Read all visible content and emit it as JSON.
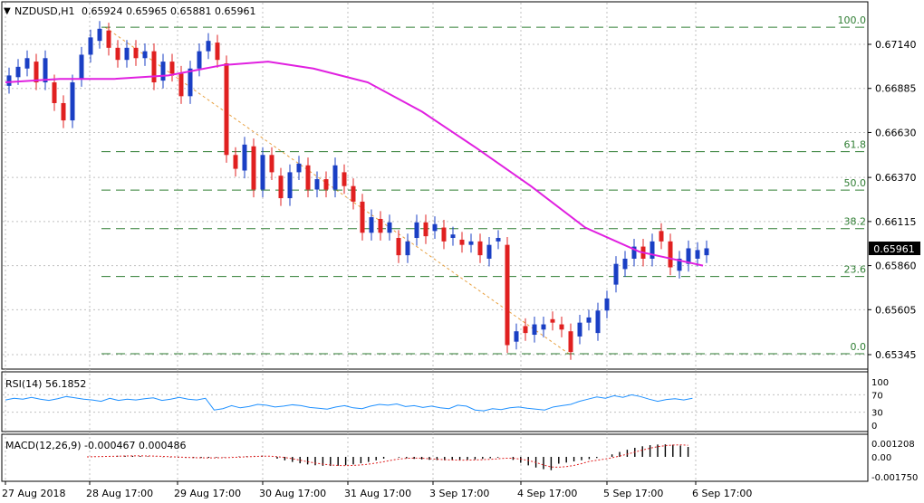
{
  "header": {
    "marker": "▼",
    "symbol": "NZDUSD,H1",
    "ohlc": "0.65924 0.65965 0.65881 0.65961"
  },
  "colors": {
    "background": "#ffffff",
    "frame": "#000000",
    "grid": "#c0c0c0",
    "bull_candle": "#1a3fc4",
    "bear_candle": "#e02020",
    "moving_average": "#e020e0",
    "fib_lines": "#2e7d32",
    "fib_trend": "#e8a040",
    "rsi_line": "#1e90ff",
    "macd_hist": "#000000",
    "macd_signal": "#e02020"
  },
  "price_axis": {
    "ticks": [
      "0.67140",
      "0.66885",
      "0.66630",
      "0.66370",
      "0.66115",
      "0.65860",
      "0.65605",
      "0.65345"
    ],
    "current_price": "0.65961"
  },
  "time_axis": {
    "labels": [
      "27 Aug 2018",
      "28 Aug 17:00",
      "29 Aug 17:00",
      "30 Aug 17:00",
      "31 Aug 17:00",
      "3 Sep 17:00",
      "4 Sep 17:00",
      "5 Sep 17:00",
      "6 Sep 17:00"
    ]
  },
  "fibonacci": {
    "levels": [
      {
        "label": "100.0",
        "price": 0.67239
      },
      {
        "label": "61.8",
        "price": 0.66519
      },
      {
        "label": "50.0",
        "price": 0.66297
      },
      {
        "label": "38.2",
        "price": 0.66074
      },
      {
        "label": "23.6",
        "price": 0.65797
      },
      {
        "label": "0.0",
        "price": 0.6535
      }
    ]
  },
  "rsi_panel": {
    "label": "RSI(14) 56.1852",
    "ticks": [
      "100",
      "70",
      "30",
      "0"
    ]
  },
  "macd_panel": {
    "label": "MACD(12,26,9) -0.000467 0.000486",
    "ticks": [
      "0.001208",
      "0.00",
      "-0.001750"
    ]
  },
  "chart_data": {
    "type": "candlestick",
    "symbol": "NZDUSD",
    "timeframe": "H1",
    "ylim": [
      0.6522,
      0.6733
    ],
    "last_close": 0.65961,
    "candles_approx": [
      {
        "x": 0,
        "o": 0.669,
        "c": 0.6696
      },
      {
        "x": 10,
        "o": 0.6695,
        "c": 0.6701
      },
      {
        "x": 20,
        "o": 0.67,
        "c": 0.6706
      },
      {
        "x": 30,
        "o": 0.6704,
        "c": 0.6692
      },
      {
        "x": 40,
        "o": 0.6692,
        "c": 0.6706
      },
      {
        "x": 50,
        "o": 0.6692,
        "c": 0.668
      },
      {
        "x": 60,
        "o": 0.668,
        "c": 0.667
      },
      {
        "x": 70,
        "o": 0.667,
        "c": 0.6692
      },
      {
        "x": 80,
        "o": 0.6694,
        "c": 0.6708
      },
      {
        "x": 90,
        "o": 0.6708,
        "c": 0.6718
      },
      {
        "x": 100,
        "o": 0.6716,
        "c": 0.6723
      },
      {
        "x": 110,
        "o": 0.6722,
        "c": 0.6712
      },
      {
        "x": 120,
        "o": 0.6712,
        "c": 0.6705
      },
      {
        "x": 130,
        "o": 0.6705,
        "c": 0.6712
      },
      {
        "x": 140,
        "o": 0.6712,
        "c": 0.6706
      },
      {
        "x": 150,
        "o": 0.6706,
        "c": 0.671
      },
      {
        "x": 160,
        "o": 0.671,
        "c": 0.6692
      },
      {
        "x": 170,
        "o": 0.6693,
        "c": 0.6704
      },
      {
        "x": 180,
        "o": 0.6704,
        "c": 0.6697
      },
      {
        "x": 190,
        "o": 0.6697,
        "c": 0.6684
      },
      {
        "x": 200,
        "o": 0.6684,
        "c": 0.67
      },
      {
        "x": 210,
        "o": 0.67,
        "c": 0.671
      },
      {
        "x": 220,
        "o": 0.671,
        "c": 0.6716
      },
      {
        "x": 230,
        "o": 0.6715,
        "c": 0.6705
      },
      {
        "x": 240,
        "o": 0.6703,
        "c": 0.665
      },
      {
        "x": 250,
        "o": 0.665,
        "c": 0.6642
      },
      {
        "x": 260,
        "o": 0.6641,
        "c": 0.6656
      },
      {
        "x": 270,
        "o": 0.6655,
        "c": 0.663
      },
      {
        "x": 280,
        "o": 0.663,
        "c": 0.665
      },
      {
        "x": 290,
        "o": 0.665,
        "c": 0.664
      },
      {
        "x": 300,
        "o": 0.6638,
        "c": 0.6625
      },
      {
        "x": 310,
        "o": 0.6625,
        "c": 0.664
      },
      {
        "x": 320,
        "o": 0.664,
        "c": 0.6645
      },
      {
        "x": 330,
        "o": 0.6644,
        "c": 0.663
      },
      {
        "x": 340,
        "o": 0.663,
        "c": 0.6636
      },
      {
        "x": 350,
        "o": 0.6636,
        "c": 0.663
      },
      {
        "x": 360,
        "o": 0.663,
        "c": 0.6644
      },
      {
        "x": 370,
        "o": 0.664,
        "c": 0.6632
      },
      {
        "x": 380,
        "o": 0.6632,
        "c": 0.6623
      },
      {
        "x": 390,
        "o": 0.6623,
        "c": 0.6605
      },
      {
        "x": 400,
        "o": 0.6605,
        "c": 0.6614
      },
      {
        "x": 410,
        "o": 0.6613,
        "c": 0.6605
      },
      {
        "x": 420,
        "o": 0.6605,
        "c": 0.6611
      },
      {
        "x": 430,
        "o": 0.6602,
        "c": 0.6592
      },
      {
        "x": 440,
        "o": 0.6592,
        "c": 0.66
      },
      {
        "x": 450,
        "o": 0.6602,
        "c": 0.6611
      },
      {
        "x": 460,
        "o": 0.6611,
        "c": 0.6603
      },
      {
        "x": 470,
        "o": 0.6606,
        "c": 0.661
      },
      {
        "x": 480,
        "o": 0.6608,
        "c": 0.66
      },
      {
        "x": 490,
        "o": 0.6602,
        "c": 0.6604
      },
      {
        "x": 500,
        "o": 0.6601,
        "c": 0.6598
      },
      {
        "x": 510,
        "o": 0.6598,
        "c": 0.66
      },
      {
        "x": 520,
        "o": 0.66,
        "c": 0.6592
      },
      {
        "x": 530,
        "o": 0.659,
        "c": 0.6598
      },
      {
        "x": 540,
        "o": 0.66,
        "c": 0.6602
      },
      {
        "x": 550,
        "o": 0.6598,
        "c": 0.654
      },
      {
        "x": 560,
        "o": 0.6542,
        "c": 0.6548
      },
      {
        "x": 570,
        "o": 0.6551,
        "c": 0.6547
      },
      {
        "x": 580,
        "o": 0.6546,
        "c": 0.6552
      },
      {
        "x": 590,
        "o": 0.6549,
        "c": 0.6552
      },
      {
        "x": 600,
        "o": 0.6555,
        "c": 0.6553
      },
      {
        "x": 610,
        "o": 0.6552,
        "c": 0.6549
      },
      {
        "x": 620,
        "o": 0.6548,
        "c": 0.6536
      },
      {
        "x": 630,
        "o": 0.6545,
        "c": 0.6553
      },
      {
        "x": 640,
        "o": 0.6553,
        "c": 0.6556
      },
      {
        "x": 650,
        "o": 0.6547,
        "c": 0.656
      },
      {
        "x": 660,
        "o": 0.656,
        "c": 0.6567
      },
      {
        "x": 670,
        "o": 0.6575,
        "c": 0.6587
      },
      {
        "x": 680,
        "o": 0.6584,
        "c": 0.659
      },
      {
        "x": 690,
        "o": 0.659,
        "c": 0.6597
      },
      {
        "x": 700,
        "o": 0.6597,
        "c": 0.659
      },
      {
        "x": 710,
        "o": 0.659,
        "c": 0.66
      },
      {
        "x": 720,
        "o": 0.6606,
        "c": 0.66
      },
      {
        "x": 730,
        "o": 0.66,
        "c": 0.6585
      },
      {
        "x": 740,
        "o": 0.6583,
        "c": 0.659
      },
      {
        "x": 750,
        "o": 0.6587,
        "c": 0.6596
      },
      {
        "x": 760,
        "o": 0.659,
        "c": 0.6595
      },
      {
        "x": 770,
        "o": 0.6592,
        "c": 0.6596
      }
    ],
    "moving_average": [
      [
        0,
        0.6692
      ],
      [
        60,
        0.6694
      ],
      [
        120,
        0.6694
      ],
      [
        180,
        0.6696
      ],
      [
        240,
        0.6702
      ],
      [
        290,
        0.6704
      ],
      [
        340,
        0.67
      ],
      [
        400,
        0.6692
      ],
      [
        460,
        0.6675
      ],
      [
        520,
        0.6654
      ],
      [
        580,
        0.6632
      ],
      [
        640,
        0.6608
      ],
      [
        700,
        0.6594
      ],
      [
        770,
        0.6586
      ]
    ],
    "fib_trendline": {
      "from": [
        110,
        0.67239
      ],
      "to": [
        622,
        0.6535
      ]
    }
  }
}
